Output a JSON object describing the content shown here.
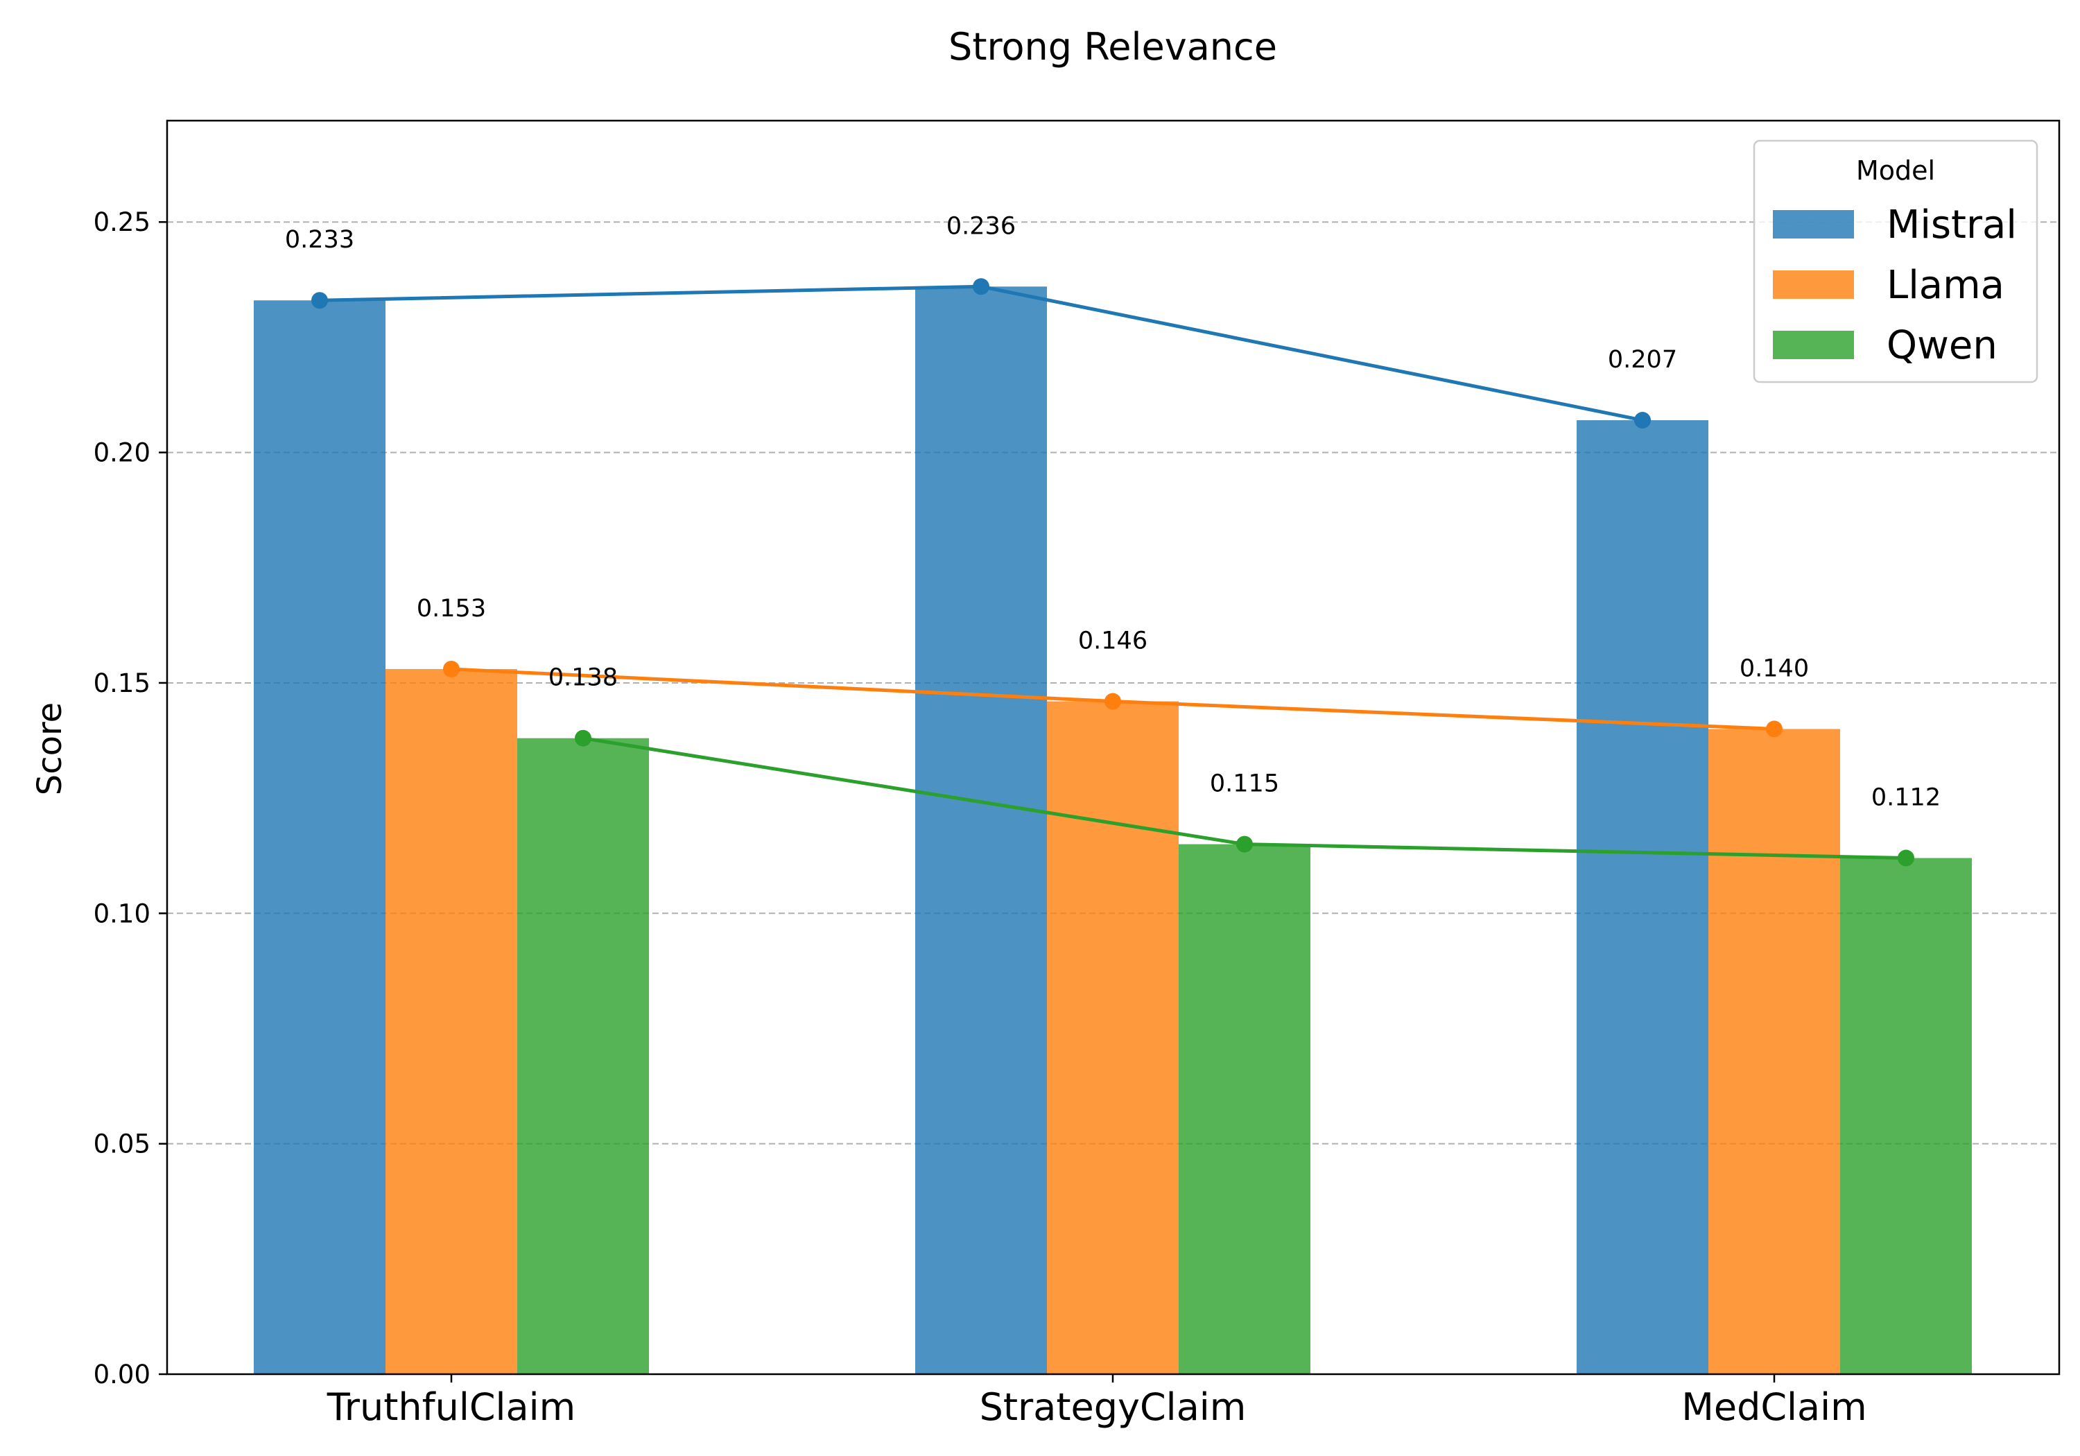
{
  "chart_data": {
    "type": "bar",
    "title": "Strong Relevance",
    "xlabel": "",
    "ylabel": "Score",
    "categories": [
      "TruthfulClaim",
      "StrategyClaim",
      "MedClaim"
    ],
    "ylim": [
      0,
      0.272
    ],
    "yticks": [
      0.0,
      0.05,
      0.1,
      0.15,
      0.2,
      0.25
    ],
    "ytick_labels": [
      "0.00",
      "0.05",
      "0.10",
      "0.15",
      "0.20",
      "0.25"
    ],
    "grid": "y-dashed",
    "overlay": "line-with-markers",
    "legend": {
      "title": "Model",
      "placement": "top-right"
    },
    "series": [
      {
        "name": "Mistral",
        "color": "#1f77b4",
        "values": [
          0.233,
          0.236,
          0.207
        ],
        "labels": [
          "0.233",
          "0.236",
          "0.207"
        ]
      },
      {
        "name": "Llama",
        "color": "#ff7f0e",
        "values": [
          0.153,
          0.146,
          0.14
        ],
        "labels": [
          "0.153",
          "0.146",
          "0.140"
        ]
      },
      {
        "name": "Qwen",
        "color": "#2ca02c",
        "values": [
          0.138,
          0.115,
          0.112
        ],
        "labels": [
          "0.138",
          "0.115",
          "0.112"
        ]
      }
    ]
  }
}
